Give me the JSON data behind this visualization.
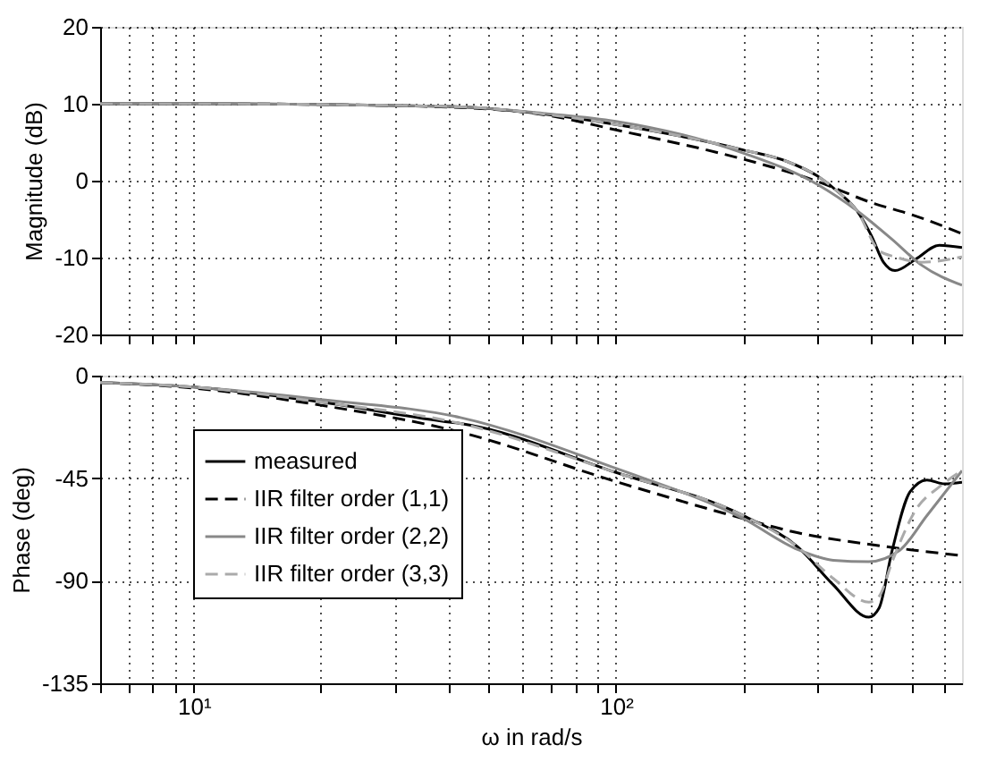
{
  "chart_data": [
    {
      "type": "line",
      "ylabel": "Magnitude (dB)",
      "xlim": [
        6,
        660
      ],
      "ylim": [
        -20,
        20
      ],
      "log": "x",
      "xticks": [
        {
          "value": 6,
          "label": null
        },
        {
          "value": 7,
          "label": null
        },
        {
          "value": 8,
          "label": null
        },
        {
          "value": 9,
          "label": null
        },
        {
          "value": 10,
          "label": null
        },
        {
          "value": 20,
          "label": null
        },
        {
          "value": 30,
          "label": null
        },
        {
          "value": 40,
          "label": null
        },
        {
          "value": 50,
          "label": null
        },
        {
          "value": 60,
          "label": null
        },
        {
          "value": 70,
          "label": null
        },
        {
          "value": 80,
          "label": null
        },
        {
          "value": 90,
          "label": null
        },
        {
          "value": 100,
          "label": null
        },
        {
          "value": 200,
          "label": null
        },
        {
          "value": 300,
          "label": null
        },
        {
          "value": 400,
          "label": null
        },
        {
          "value": 500,
          "label": null
        },
        {
          "value": 600,
          "label": null
        }
      ],
      "yticks": [
        -20,
        -10,
        0,
        10,
        20
      ],
      "grid": true,
      "tick_labels": "y",
      "series": [
        {
          "color": "#000000",
          "line_style": "solid",
          "x": [
            6,
            10,
            20,
            42.8,
            68.8,
            100,
            200,
            254,
            300,
            338,
            372,
            403,
            430,
            458,
            513,
            583,
            660
          ],
          "values": [
            10,
            10,
            9.9,
            9.6,
            8.6,
            7.3,
            4.0,
            2.5,
            0.6,
            -1.6,
            -3.9,
            -7.2,
            -10.6,
            -11.7,
            -10.2,
            -8.4,
            -8.7
          ]
        },
        {
          "color": "#000000",
          "line_style": "dashed",
          "x": [
            6,
            10,
            20,
            42.8,
            68.8,
            100,
            200,
            250,
            300,
            400,
            513,
            660
          ],
          "values": [
            10,
            10,
            9.9,
            9.5,
            8.5,
            6.6,
            2.8,
            1.3,
            -0.1,
            -2.8,
            -4.6,
            -6.9
          ]
        },
        {
          "color": "#888888",
          "line_style": "solid",
          "x": [
            6,
            10,
            20,
            42.8,
            68.8,
            100,
            200,
            300,
            372,
            450,
            530,
            660
          ],
          "values": [
            10,
            10,
            9.9,
            9.6,
            8.7,
            7.7,
            3.6,
            -0.5,
            -3.9,
            -7.6,
            -11,
            -13.6
          ]
        },
        {
          "color": "#aaaaaa",
          "line_style": "dashed",
          "x": [
            6,
            10,
            20,
            42.8,
            68.8,
            100,
            200,
            254,
            300,
            338,
            372,
            420,
            458,
            530,
            660
          ],
          "values": [
            10,
            10,
            9.9,
            9.6,
            8.6,
            7.3,
            4.0,
            2.5,
            0.6,
            -1.6,
            -3.9,
            -9.1,
            -9.9,
            -10.6,
            -9.9
          ]
        }
      ]
    },
    {
      "type": "line",
      "ylabel": "Phase (deg)",
      "xlabel": "ω in rad/s",
      "xlim": [
        6,
        660
      ],
      "ylim": [
        -135,
        0
      ],
      "log": "x",
      "xticks": [
        {
          "value": 6,
          "label": null
        },
        {
          "value": 7,
          "label": null
        },
        {
          "value": 8,
          "label": null
        },
        {
          "value": 9,
          "label": null
        },
        {
          "value": 10,
          "label": "10¹"
        },
        {
          "value": 20,
          "label": null
        },
        {
          "value": 30,
          "label": null
        },
        {
          "value": 40,
          "label": null
        },
        {
          "value": 50,
          "label": null
        },
        {
          "value": 60,
          "label": null
        },
        {
          "value": 70,
          "label": null
        },
        {
          "value": 80,
          "label": null
        },
        {
          "value": 90,
          "label": null
        },
        {
          "value": 100,
          "label": "10²"
        },
        {
          "value": 200,
          "label": null
        },
        {
          "value": 300,
          "label": null
        },
        {
          "value": 400,
          "label": null
        },
        {
          "value": 500,
          "label": null
        },
        {
          "value": 600,
          "label": null
        }
      ],
      "yticks": [
        -135,
        -90,
        -45,
        0
      ],
      "grid": true,
      "legend": "left",
      "series": [
        {
          "name": "measured",
          "color": "#000000",
          "line_style": "solid",
          "x": [
            6,
            10,
            20,
            38.8,
            42.8,
            100,
            200,
            270,
            327,
            397,
            420,
            451,
            497,
            545,
            600,
            660
          ],
          "values": [
            -3,
            -5,
            -11.6,
            -20,
            -21,
            -42.5,
            -61.4,
            -75.3,
            -91.8,
            -106,
            -101.9,
            -76.6,
            -51,
            -45.8,
            -47.5,
            -46.8
          ]
        },
        {
          "name": "IIR filter order (1,1)",
          "color": "#000000",
          "line_style": "dashed",
          "x": [
            6,
            10,
            20,
            42.8,
            100,
            200,
            270,
            397,
            660
          ],
          "values": [
            -3,
            -5.5,
            -13,
            -24.8,
            -46.5,
            -62.7,
            -69,
            -74,
            -79
          ]
        },
        {
          "name": "IIR filter order (2,2)",
          "color": "#888888",
          "line_style": "solid",
          "x": [
            6,
            10,
            20,
            42.8,
            100,
            200,
            270,
            327,
            397,
            470,
            545,
            660
          ],
          "values": [
            -3,
            -5,
            -10.5,
            -18.4,
            -40.7,
            -62.7,
            -76.4,
            -81,
            -81.6,
            -76.6,
            -61.4,
            -41.7
          ]
        },
        {
          "name": "IIR filter order (3,3)",
          "color": "#aaaaaa",
          "line_style": "dashed",
          "x": [
            6,
            10,
            20,
            42.8,
            100,
            200,
            270,
            327,
            397,
            420,
            451,
            513,
            583,
            660
          ],
          "values": [
            -3,
            -5,
            -11.6,
            -21,
            -42.5,
            -61.4,
            -75.3,
            -89,
            -99.4,
            -96.8,
            -81.6,
            -58.9,
            -48.8,
            -41.7
          ]
        }
      ]
    }
  ]
}
